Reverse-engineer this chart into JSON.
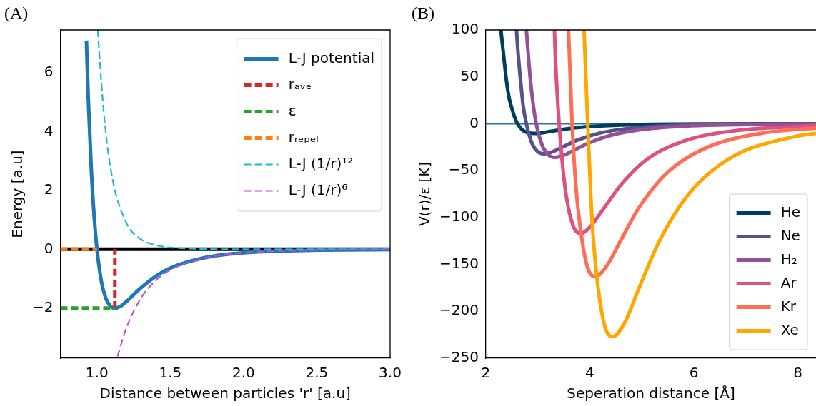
{
  "chart_data": [
    {
      "type": "line",
      "annotations": [
        "(A)"
      ],
      "xlabel": "Distance between particles 'r' [a.u]",
      "ylabel": "Energy [a.u]",
      "xlim": [
        0.75,
        3.0
      ],
      "xticks": [
        {
          "value": 1,
          "label": "1.0"
        },
        {
          "value": 1.5,
          "label": "1.5"
        },
        {
          "value": 2,
          "label": "2.0"
        },
        {
          "value": 2.5,
          "label": "2.5"
        },
        {
          "value": 3,
          "label": "3.0"
        }
      ],
      "ylim": [
        -3.7,
        7.45
      ],
      "yticks": [
        {
          "value": -2,
          "label": "−2"
        },
        0,
        2,
        4,
        6
      ],
      "grid": false,
      "legend": "top right",
      "marker": "none",
      "ref_lines": [
        {
          "axis": "y",
          "value": 0,
          "color": "#000000"
        }
      ],
      "series": [
        {
          "name": "L-J potential",
          "color": "#1f77b4",
          "x": [
            0.928,
            0.94,
            0.96,
            0.98,
            1.0,
            1.03,
            1.06,
            1.09,
            1.122,
            1.16,
            1.2,
            1.3,
            1.4,
            1.5,
            1.75,
            2.0,
            2.5,
            3.0
          ],
          "values": [
            7.09,
            5.2,
            2.84,
            1.16,
            0,
            -1.09,
            -1.66,
            -1.92,
            -2,
            -1.94,
            -1.78,
            -1.31,
            -0.92,
            -0.64,
            -0.27,
            -0.12,
            -0.03,
            -0.01
          ]
        },
        {
          "name": "rₐᵥₑ",
          "color": "#d62728",
          "line_style": "dashed",
          "x": [
            1.122,
            1.122
          ],
          "values": [
            -2,
            0
          ]
        },
        {
          "name": "ε",
          "color": "#2ca02c",
          "line_style": "dashed",
          "x": [
            0.75,
            1.122
          ],
          "values": [
            -2,
            -2
          ]
        },
        {
          "name": "rᵣₑₚₑₗ",
          "color": "#ff7f0e",
          "line_style": "dashed",
          "x": [
            0.75,
            1.0
          ],
          "values": [
            0,
            0
          ]
        },
        {
          "name": "L-J (1/r)¹²",
          "color": "#17becf",
          "line_style": "dashed",
          "x": [
            1.006,
            1.01,
            1.05,
            1.1,
            1.2,
            1.3,
            1.4,
            1.5,
            2.0,
            3.0
          ],
          "values": [
            7.45,
            7.1,
            4.46,
            2.55,
            0.9,
            0.34,
            0.14,
            0.06,
            0.0,
            0.0
          ]
        },
        {
          "name": "L-J (1/r)⁶",
          "color": "#bf4fdb",
          "line_style": "dashed",
          "x": [
            1.14,
            1.2,
            1.3,
            1.4,
            1.5,
            1.75,
            2.0,
            2.5,
            3.0
          ],
          "values": [
            -3.64,
            -2.68,
            -1.66,
            -1.06,
            -0.7,
            -0.28,
            -0.12,
            -0.03,
            -0.01
          ]
        }
      ]
    },
    {
      "type": "line",
      "annotations": [
        "(B)"
      ],
      "xlabel": "Seperation distance [Å]",
      "ylabel": "V(r)/ε [K]",
      "xlim": [
        2,
        8.35
      ],
      "xticks": [
        2,
        4,
        6,
        8
      ],
      "ylim": [
        -250,
        100
      ],
      "yticks": [
        {
          "value": -250,
          "label": "−250"
        },
        {
          "value": -200,
          "label": "−200"
        },
        {
          "value": -150,
          "label": "−150"
        },
        {
          "value": -100,
          "label": "−100"
        },
        {
          "value": -50,
          "label": "−50"
        },
        0,
        50,
        100
      ],
      "grid": false,
      "legend": "bottom right",
      "marker": "none",
      "ref_lines": [
        {
          "axis": "y",
          "value": 0,
          "color": "#1f77b4"
        }
      ],
      "series": [
        {
          "name": "He",
          "color": "#003f5c",
          "x": [
            2.29,
            2.35,
            2.4,
            2.45,
            2.51,
            2.56,
            2.61,
            2.71,
            2.82,
            2.93,
            3.08,
            3.26,
            3.52,
            3.92,
            4.44,
            5.22,
            6.53,
            8.35
          ],
          "values": [
            100,
            69,
            44.5,
            27,
            14.8,
            6.1,
            0,
            -6.9,
            -9.7,
            -10.4,
            -9.7,
            -8,
            -5.7,
            -3.3,
            -1.7,
            -0.6,
            -0.2,
            0
          ]
        },
        {
          "name": "Ne",
          "color": "#58508d",
          "x": [
            2.59,
            2.61,
            2.67,
            2.72,
            2.78,
            2.89,
            3.0,
            3.12,
            3.28,
            3.48,
            3.75,
            4.17,
            4.73,
            5.56,
            6.95,
            8.35
          ],
          "values": [
            100,
            83,
            45,
            18.6,
            0,
            -21.2,
            -29.8,
            -32,
            -29.9,
            -24.8,
            -17.7,
            -10.2,
            -5.1,
            -2,
            -0.5,
            -0.2
          ]
        },
        {
          "name": "H₂",
          "color": "#955196",
          "x": [
            2.78,
            2.79,
            2.85,
            2.91,
            2.97,
            3.09,
            3.21,
            3.33,
            3.5,
            3.71,
            4.01,
            4.46,
            5.05,
            5.94,
            7.43,
            8.35
          ],
          "values": [
            100,
            93,
            51,
            20.9,
            0,
            -23.8,
            -33.5,
            -35.9,
            -33.5,
            -27.8,
            -19.8,
            -11.5,
            -5.7,
            -2.2,
            -0.6,
            -0.3
          ]
        },
        {
          "name": "Ar",
          "color": "#dd5182",
          "x": [
            3.32,
            3.34,
            3.41,
            3.48,
            3.55,
            3.68,
            3.83,
            4.02,
            4.26,
            4.6,
            5.12,
            5.8,
            6.82,
            8.35
          ],
          "values": [
            100,
            68,
            0,
            -46,
            -78,
            -109,
            -117,
            -109,
            -91,
            -65,
            -37,
            -18.6,
            -7.2,
            -2.2
          ]
        },
        {
          "name": "Kr",
          "color": "#ff6e54",
          "x": [
            3.59,
            3.66,
            3.73,
            3.81,
            3.95,
            4.11,
            4.32,
            4.58,
            4.94,
            5.49,
            6.22,
            7.32,
            8.35
          ],
          "values": [
            100,
            0,
            -65,
            -108,
            -152,
            -163,
            -152,
            -126,
            -90,
            -52,
            -26,
            -10,
            -4.6
          ]
        },
        {
          "name": "Xe",
          "color": "#ffa600",
          "x": [
            3.89,
            3.96,
            4.03,
            4.11,
            4.27,
            4.44,
            4.67,
            4.94,
            5.34,
            5.93,
            6.72,
            7.91,
            8.35
          ],
          "values": [
            100,
            0,
            -90,
            -150,
            -212,
            -227,
            -212,
            -176,
            -125,
            -73,
            -36,
            -14,
            -10.1
          ]
        }
      ]
    }
  ]
}
